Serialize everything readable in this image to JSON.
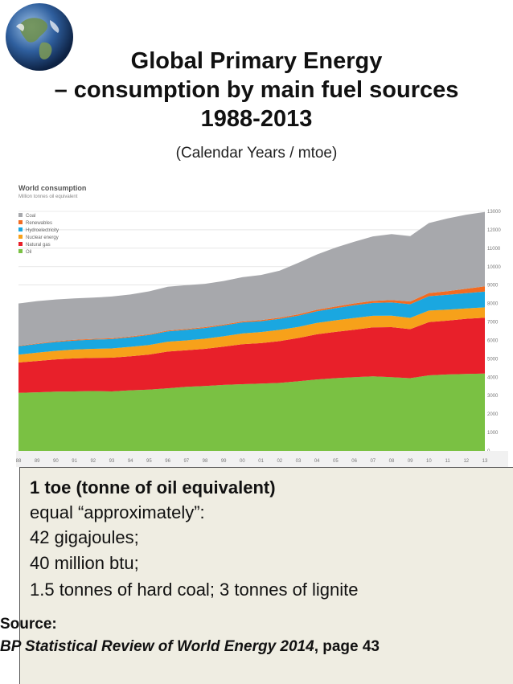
{
  "header": {
    "title_line1": "Global Primary Energy",
    "title_line2": "– consumption by main fuel sources",
    "title_line3": "1988-2013",
    "subtitle": "(Calendar Years / mtoe)"
  },
  "chart_data": {
    "type": "area",
    "stacked": true,
    "title": "World consumption",
    "subtitle": "Million tonnes oil equivalent",
    "x": [
      "88",
      "89",
      "90",
      "91",
      "92",
      "93",
      "94",
      "95",
      "96",
      "97",
      "98",
      "99",
      "00",
      "01",
      "02",
      "03",
      "04",
      "05",
      "06",
      "07",
      "08",
      "09",
      "10",
      "11",
      "12",
      "13"
    ],
    "ylim": [
      0,
      13000
    ],
    "yticks": [
      0,
      1000,
      2000,
      3000,
      4000,
      5000,
      6000,
      7000,
      8000,
      9000,
      10000,
      11000,
      12000,
      13000
    ],
    "legend_position": "top-left",
    "grid": true,
    "series": [
      {
        "name": "Oil",
        "color": "#7ac143",
        "values": [
          3150,
          3180,
          3220,
          3230,
          3250,
          3230,
          3290,
          3330,
          3400,
          3480,
          3520,
          3580,
          3620,
          3650,
          3690,
          3780,
          3880,
          3950,
          4000,
          4050,
          4000,
          3950,
          4100,
          4150,
          4180,
          4200
        ]
      },
      {
        "name": "Natural gas",
        "color": "#e8202a",
        "values": [
          1650,
          1700,
          1750,
          1790,
          1800,
          1830,
          1850,
          1900,
          1990,
          1980,
          2020,
          2080,
          2170,
          2200,
          2270,
          2350,
          2450,
          2510,
          2580,
          2660,
          2720,
          2660,
          2890,
          2920,
          2990,
          3030
        ]
      },
      {
        "name": "Nuclear energy",
        "color": "#f7a11a",
        "values": [
          420,
          450,
          460,
          480,
          490,
          500,
          510,
          520,
          540,
          540,
          550,
          560,
          585,
          600,
          610,
          600,
          620,
          627,
          635,
          622,
          620,
          610,
          626,
          600,
          560,
          563
        ]
      },
      {
        "name": "Hydroelectricity",
        "color": "#1aa7e0",
        "values": [
          460,
          470,
          480,
          490,
          500,
          510,
          520,
          540,
          560,
          570,
          580,
          590,
          600,
          590,
          600,
          610,
          630,
          660,
          690,
          700,
          720,
          740,
          780,
          800,
          830,
          855
        ]
      },
      {
        "name": "Renewables",
        "color": "#f26b21",
        "values": [
          30,
          30,
          40,
          40,
          40,
          40,
          40,
          40,
          40,
          50,
          50,
          50,
          50,
          60,
          60,
          70,
          80,
          90,
          100,
          110,
          130,
          150,
          170,
          200,
          240,
          280
        ]
      },
      {
        "name": "Coal",
        "color": "#a7a8ac",
        "values": [
          2290,
          2300,
          2270,
          2250,
          2240,
          2270,
          2280,
          2330,
          2380,
          2380,
          2350,
          2360,
          2400,
          2450,
          2550,
          2800,
          3000,
          3200,
          3350,
          3500,
          3580,
          3550,
          3800,
          3950,
          4020,
          4040
        ]
      }
    ]
  },
  "info_box": {
    "heading": "1 toe (tonne of oil equivalent)",
    "line1": "equal “approximately”:",
    "line2": "42 gigajoules;",
    "line3": "40 million btu;",
    "line4": "1.5 tonnes of hard coal; 3 tonnes of lignite"
  },
  "source": {
    "label": "Source:",
    "title": "BP Statistical Review of World Energy 2014",
    "page": ", page 43"
  }
}
